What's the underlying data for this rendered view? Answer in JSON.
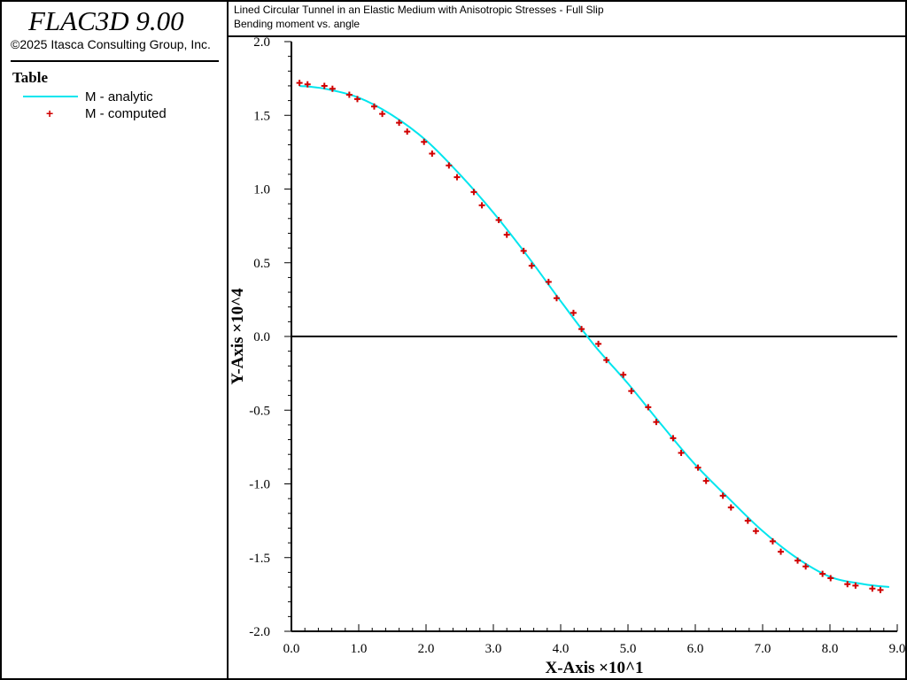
{
  "app": {
    "title": "FLAC3D 9.00",
    "copyright": "©2025 Itasca Consulting Group, Inc."
  },
  "legend": {
    "heading": "Table",
    "items": [
      {
        "label": "M - analytic",
        "style": "line",
        "color": "#00e5ee"
      },
      {
        "label": "M - computed",
        "style": "plus",
        "color": "#d00000"
      }
    ]
  },
  "plot": {
    "title_line1": "Lined Circular Tunnel in an Elastic Medium with Anisotropic Stresses - Full Slip",
    "title_line2": "Bending moment vs. angle"
  },
  "chart_data": {
    "type": "line",
    "title": "Lined Circular Tunnel in an Elastic Medium with Anisotropic Stresses - Full Slip",
    "subtitle": "Bending moment vs. angle",
    "xlabel": "X-Axis ×10^1",
    "ylabel": "Y-Axis ×10^4",
    "xlim": [
      0,
      9
    ],
    "ylim": [
      -2,
      2
    ],
    "x_ticks": [
      "0.0",
      "1.0",
      "2.0",
      "3.0",
      "4.0",
      "5.0",
      "6.0",
      "7.0",
      "8.0",
      "9.0"
    ],
    "y_ticks": [
      "2.0",
      "1.5",
      "1.0",
      "0.5",
      "0.0",
      "-0.5",
      "-1.0",
      "-1.5",
      "-2.0"
    ],
    "grid": false,
    "zero_line": true,
    "series": [
      {
        "name": "M - analytic",
        "style": "line",
        "color": "#00e5ee",
        "x": [
          0.12,
          0.5,
          1.0,
          1.5,
          2.0,
          2.5,
          3.0,
          3.5,
          4.0,
          4.5,
          5.0,
          5.5,
          6.0,
          6.5,
          7.0,
          7.5,
          8.0,
          8.5,
          8.88
        ],
        "y": [
          1.7,
          1.68,
          1.62,
          1.5,
          1.33,
          1.1,
          0.84,
          0.55,
          0.24,
          -0.06,
          -0.32,
          -0.6,
          -0.87,
          -1.1,
          -1.32,
          -1.5,
          -1.63,
          -1.68,
          -1.7
        ]
      },
      {
        "name": "M - computed",
        "style": "plus",
        "color": "#d00000",
        "x": [
          0.12,
          0.24,
          0.49,
          0.61,
          0.86,
          0.98,
          1.23,
          1.35,
          1.6,
          1.72,
          1.97,
          2.09,
          2.34,
          2.46,
          2.71,
          2.83,
          3.08,
          3.2,
          3.45,
          3.57,
          3.82,
          3.94,
          4.19,
          4.31,
          4.56,
          4.68,
          4.93,
          5.05,
          5.3,
          5.42,
          5.67,
          5.79,
          6.04,
          6.16,
          6.41,
          6.53,
          6.78,
          6.9,
          7.15,
          7.27,
          7.52,
          7.64,
          7.89,
          8.01,
          8.26,
          8.38,
          8.63,
          8.75
        ],
        "y": [
          1.72,
          1.71,
          1.7,
          1.68,
          1.64,
          1.61,
          1.56,
          1.51,
          1.45,
          1.39,
          1.32,
          1.24,
          1.16,
          1.08,
          0.98,
          0.89,
          0.79,
          0.69,
          0.58,
          0.48,
          0.37,
          0.26,
          0.16,
          0.05,
          -0.05,
          -0.16,
          -0.26,
          -0.37,
          -0.48,
          -0.58,
          -0.69,
          -0.79,
          -0.89,
          -0.98,
          -1.08,
          -1.16,
          -1.25,
          -1.32,
          -1.39,
          -1.46,
          -1.52,
          -1.56,
          -1.61,
          -1.64,
          -1.68,
          -1.69,
          -1.71,
          -1.72
        ]
      }
    ]
  }
}
